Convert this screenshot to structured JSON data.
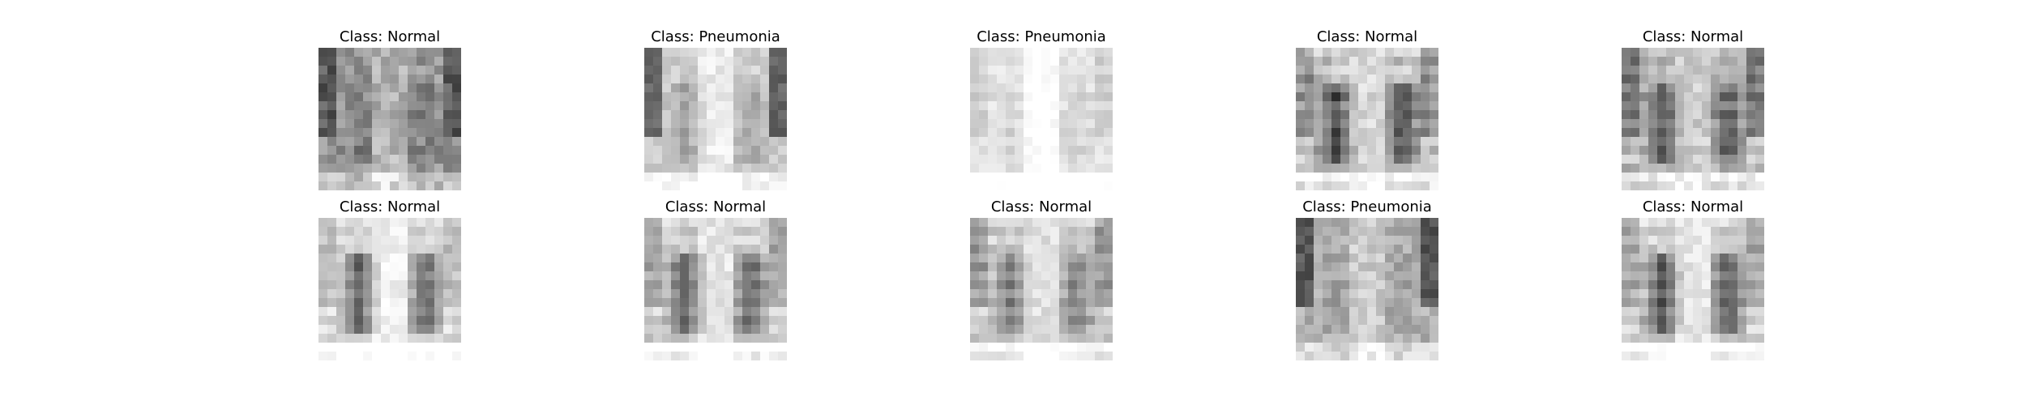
{
  "figure": {
    "panels": [
      {
        "title": "Class: Normal"
      },
      {
        "title": "Class: Pneumonia"
      },
      {
        "title": "Class: Pneumonia"
      },
      {
        "title": "Class: Normal"
      },
      {
        "title": "Class: Normal"
      },
      {
        "title": "Class: Normal"
      },
      {
        "title": "Class: Normal"
      },
      {
        "title": "Class: Normal"
      },
      {
        "title": "Class: Pneumonia"
      },
      {
        "title": "Class: Normal"
      }
    ]
  }
}
